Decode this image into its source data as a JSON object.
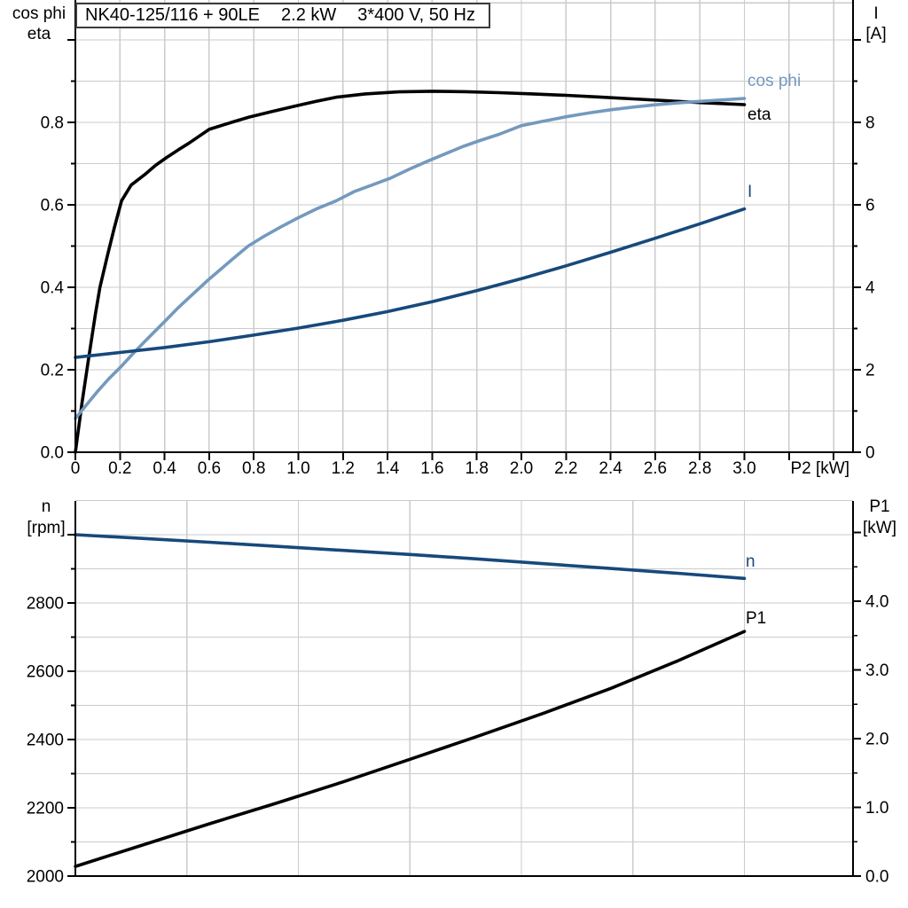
{
  "title_box": {
    "model": "NK40-125/116 + 90LE",
    "power": "2.2 kW",
    "supply": "3*400 V, 50 Hz"
  },
  "colors": {
    "black": "#000000",
    "light_blue": "#7499BE",
    "dark_blue": "#17497B",
    "grid": "#cbcbcb",
    "axis": "#000000",
    "background": "#ffffff"
  },
  "top_chart": {
    "left_axis_title_line1": "cos phi",
    "left_axis_title_line2": "eta",
    "right_axis_title_line1": "I",
    "right_axis_title_line2": "[A]",
    "x_axis_title": "P2 [kW]",
    "curve_labels": {
      "cos_phi": "cos phi",
      "eta": "eta",
      "current": "I"
    }
  },
  "bottom_chart": {
    "left_axis_title_line1": "n",
    "left_axis_title_line2": "[rpm]",
    "right_axis_title_line1": "P1",
    "right_axis_title_line2": "[kW]",
    "curve_labels": {
      "speed": "n",
      "power_in": "P1"
    }
  },
  "chart_data": [
    {
      "type": "line",
      "title": "NK40-125/116 + 90LE  2.2 kW  3*400 V, 50 Hz",
      "xlabel": "P2 [kW]",
      "ylabel_left": "cos phi / eta",
      "ylabel_right": "I [A]",
      "grid": true,
      "x_axis": {
        "min": 0,
        "max": 3.49,
        "grid_values": [
          0.2,
          0.4,
          0.6,
          0.8,
          1.0,
          1.2,
          1.4,
          1.6,
          1.8,
          2.0,
          2.2,
          2.4,
          2.6,
          2.8,
          3.0,
          3.2,
          3.4
        ],
        "major_ticks": [
          0,
          0.2,
          0.4,
          0.6,
          0.8,
          1.0,
          1.2,
          1.4,
          1.6,
          1.8,
          2.0,
          2.2,
          2.4,
          2.6,
          2.8,
          3.0,
          3.2,
          3.4
        ],
        "tick_labels": [
          "0",
          "0.2",
          "0.4",
          "0.6",
          "0.8",
          "1.0",
          "1.2",
          "1.4",
          "1.6",
          "1.8",
          "2.0",
          "2.2",
          "2.4",
          "2.6",
          "2.8",
          "3.0",
          "",
          ""
        ]
      },
      "left_axis": {
        "min": 0,
        "max": 1.097,
        "grid_values": [
          0.1,
          0.2,
          0.3,
          0.4,
          0.5,
          0.6,
          0.7,
          0.8,
          0.9,
          1.0,
          1.09
        ],
        "major_ticks": [
          0,
          0.2,
          0.4,
          0.6,
          0.8,
          1.0
        ],
        "tick_labels": [
          "0.0",
          "0.2",
          "0.4",
          "0.6",
          "0.8",
          ""
        ],
        "minor_ticks": [
          0.1,
          0.3,
          0.5,
          0.7,
          0.9
        ]
      },
      "right_axis": {
        "min": 0,
        "max": 10.97,
        "major_ticks": [
          0,
          2,
          4,
          6,
          8,
          10
        ],
        "tick_labels": [
          "0",
          "2",
          "4",
          "6",
          "8",
          ""
        ],
        "minor_ticks": [
          1,
          3,
          5,
          7,
          9
        ]
      },
      "series": [
        {
          "name": "eta",
          "axis": "left",
          "color_key": "black",
          "points": [
            [
              0,
              0
            ],
            [
              0.03,
              0.12
            ],
            [
              0.06,
              0.23
            ],
            [
              0.09,
              0.335
            ],
            [
              0.11,
              0.4
            ],
            [
              0.145,
              0.48
            ],
            [
              0.175,
              0.545
            ],
            [
              0.207,
              0.61
            ],
            [
              0.25,
              0.648
            ],
            [
              0.31,
              0.673
            ],
            [
              0.36,
              0.696
            ],
            [
              0.41,
              0.715
            ],
            [
              0.46,
              0.733
            ],
            [
              0.51,
              0.75
            ],
            [
              0.6,
              0.783
            ],
            [
              0.7,
              0.8
            ],
            [
              0.78,
              0.813
            ],
            [
              0.88,
              0.826
            ],
            [
              0.99,
              0.84
            ],
            [
              1.08,
              0.851
            ],
            [
              1.17,
              0.861
            ],
            [
              1.3,
              0.869
            ],
            [
              1.45,
              0.874
            ],
            [
              1.6,
              0.8755
            ],
            [
              1.75,
              0.8745
            ],
            [
              1.9,
              0.872
            ],
            [
              2.05,
              0.869
            ],
            [
              2.2,
              0.8655
            ],
            [
              2.35,
              0.8615
            ],
            [
              2.5,
              0.857
            ],
            [
              2.65,
              0.8525
            ],
            [
              2.8,
              0.848
            ],
            [
              2.9,
              0.8455
            ],
            [
              3.0,
              0.843
            ]
          ]
        },
        {
          "name": "cos phi",
          "axis": "left",
          "color_key": "light_blue",
          "points": [
            [
              0,
              0.082
            ],
            [
              0.05,
              0.115
            ],
            [
              0.1,
              0.148
            ],
            [
              0.15,
              0.178
            ],
            [
              0.207,
              0.209
            ],
            [
              0.26,
              0.24
            ],
            [
              0.31,
              0.268
            ],
            [
              0.36,
              0.295
            ],
            [
              0.406,
              0.32
            ],
            [
              0.46,
              0.35
            ],
            [
              0.51,
              0.375
            ],
            [
              0.56,
              0.4
            ],
            [
              0.6,
              0.42
            ],
            [
              0.65,
              0.443
            ],
            [
              0.7,
              0.466
            ],
            [
              0.775,
              0.5
            ],
            [
              0.85,
              0.525
            ],
            [
              0.92,
              0.546
            ],
            [
              0.99,
              0.566
            ],
            [
              1.08,
              0.59
            ],
            [
              1.17,
              0.61
            ],
            [
              1.25,
              0.632
            ],
            [
              1.33,
              0.648
            ],
            [
              1.41,
              0.664
            ],
            [
              1.5,
              0.687
            ],
            [
              1.58,
              0.706
            ],
            [
              1.66,
              0.724
            ],
            [
              1.74,
              0.742
            ],
            [
              1.82,
              0.757
            ],
            [
              1.9,
              0.771
            ],
            [
              2.0,
              0.792
            ],
            [
              2.1,
              0.803
            ],
            [
              2.2,
              0.8135
            ],
            [
              2.3,
              0.8225
            ],
            [
              2.4,
              0.8305
            ],
            [
              2.5,
              0.837
            ],
            [
              2.6,
              0.8425
            ],
            [
              2.7,
              0.847
            ],
            [
              2.8,
              0.851
            ],
            [
              2.9,
              0.8545
            ],
            [
              3.0,
              0.858
            ]
          ]
        },
        {
          "name": "I",
          "axis": "right",
          "color_key": "dark_blue",
          "points": [
            [
              0,
              2.3
            ],
            [
              0.2,
              2.42
            ],
            [
              0.4,
              2.54
            ],
            [
              0.6,
              2.68
            ],
            [
              0.8,
              2.84
            ],
            [
              1.0,
              3.01
            ],
            [
              1.2,
              3.2
            ],
            [
              1.4,
              3.41
            ],
            [
              1.6,
              3.65
            ],
            [
              1.8,
              3.92
            ],
            [
              2.0,
              4.21
            ],
            [
              2.2,
              4.52
            ],
            [
              2.4,
              4.85
            ],
            [
              2.6,
              5.19
            ],
            [
              2.8,
              5.54
            ],
            [
              3.0,
              5.9
            ]
          ]
        }
      ]
    },
    {
      "type": "line",
      "xlabel": "P2 [kW]",
      "ylabel_left": "n [rpm]",
      "ylabel_right": "P1 [kW]",
      "grid": true,
      "x_axis": {
        "min": 0,
        "max": 3.49,
        "grid_values": [
          0.5,
          1.0,
          1.5,
          2.0,
          2.5,
          3.0
        ],
        "major_ticks": [],
        "tick_labels": []
      },
      "left_axis": {
        "min": 2000,
        "max": 3100,
        "grid_values": [
          2100,
          2200,
          2300,
          2400,
          2500,
          2600,
          2700,
          2800,
          2900,
          3000,
          3100
        ],
        "major_ticks": [
          2000,
          2200,
          2400,
          2600,
          2800,
          3000
        ],
        "tick_labels": [
          "2000",
          "2200",
          "2400",
          "2600",
          "2800",
          ""
        ],
        "minor_ticks": [
          2100,
          2300,
          2500,
          2700,
          2900
        ]
      },
      "right_axis": {
        "min": 0,
        "max": 5.46,
        "major_ticks": [
          0,
          1,
          2,
          3,
          4,
          5
        ],
        "tick_labels": [
          "0.0",
          "1.0",
          "2.0",
          "3.0",
          "4.0",
          ""
        ],
        "minor_ticks": [
          0.5,
          1.5,
          2.5,
          3.5,
          4.5
        ]
      },
      "series": [
        {
          "name": "n",
          "axis": "left",
          "color_key": "dark_blue",
          "points": [
            [
              0,
              3000
            ],
            [
              0.3,
              2989
            ],
            [
              0.6,
              2978
            ],
            [
              0.9,
              2966
            ],
            [
              1.2,
              2954
            ],
            [
              1.5,
              2942
            ],
            [
              1.8,
              2929
            ],
            [
              2.1,
              2915
            ],
            [
              2.4,
              2901
            ],
            [
              2.7,
              2887
            ],
            [
              3.0,
              2872
            ]
          ]
        },
        {
          "name": "P1",
          "axis": "right",
          "color_key": "black",
          "points": [
            [
              0,
              0.14
            ],
            [
              0.3,
              0.45
            ],
            [
              0.6,
              0.76
            ],
            [
              0.9,
              1.06
            ],
            [
              1.2,
              1.37
            ],
            [
              1.5,
              1.7
            ],
            [
              1.8,
              2.03
            ],
            [
              2.1,
              2.37
            ],
            [
              2.4,
              2.73
            ],
            [
              2.7,
              3.13
            ],
            [
              3.0,
              3.56
            ]
          ]
        }
      ]
    }
  ]
}
